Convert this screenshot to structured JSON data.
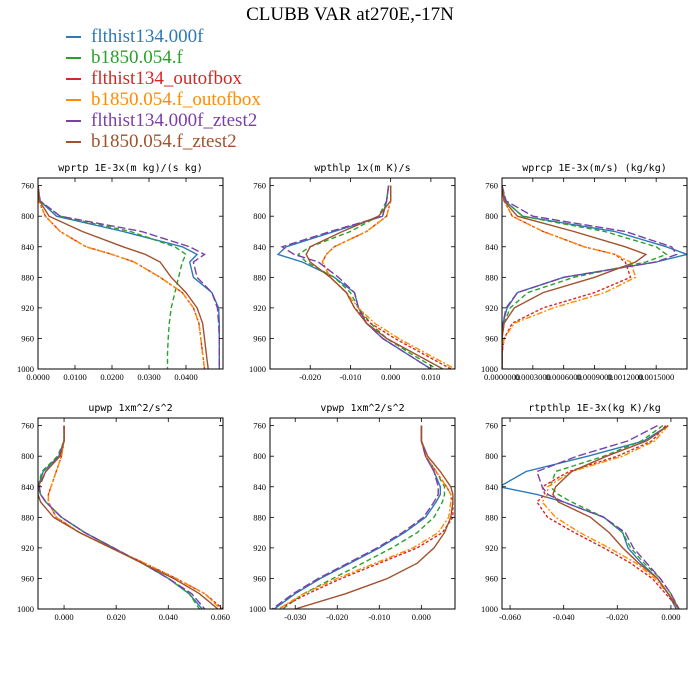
{
  "title": "CLUBB VAR at270E,-17N",
  "legend": [
    {
      "label": "flthist134.000f",
      "color": "#2d7ab6"
    },
    {
      "label": "b1850.054.f",
      "color": "#2ca02c"
    },
    {
      "label": "flthist134_outofbox",
      "color": "#d62728"
    },
    {
      "label": "b1850.054.f_outofbox",
      "color": "#ff8c00"
    },
    {
      "label": "flthist134.000f_ztest2",
      "color": "#7b3fa8"
    },
    {
      "label": "b1850.054.f_ztest2",
      "color": "#a0522d"
    }
  ],
  "chart_data": [
    {
      "type": "line",
      "title": "wprtp  1E-3x(m kg)/(s kg)",
      "xlim": [
        0,
        0.05
      ],
      "ylim": [
        1000,
        750
      ],
      "y_ticks": [
        760,
        800,
        840,
        880,
        920,
        960,
        1000
      ],
      "x_ticks": [
        "0.0000",
        "0.0100",
        "0.0200",
        "0.0300",
        "0.0400"
      ],
      "x_tick_values": [
        0,
        0.01,
        0.02,
        0.03,
        0.04
      ],
      "p": [
        760,
        780,
        800,
        820,
        840,
        850,
        860,
        880,
        900,
        920,
        940,
        960,
        980,
        1000
      ],
      "series": [
        {
          "values": [
            0.0,
            0.0005,
            0.005,
            0.023,
            0.039,
            0.043,
            0.041,
            0.042,
            0.047,
            0.0488,
            0.049,
            0.049,
            0.049,
            0.049
          ]
        },
        {
          "values": [
            0.0,
            0.0005,
            0.006,
            0.025,
            0.037,
            0.04,
            0.039,
            0.038,
            0.037,
            0.036,
            0.0355,
            0.0352,
            0.035,
            0.035
          ]
        },
        {
          "values": [
            0.0,
            0.0002,
            0.002,
            0.006,
            0.013,
            0.02,
            0.026,
            0.033,
            0.039,
            0.042,
            0.0435,
            0.044,
            0.0445,
            0.045
          ]
        },
        {
          "values": [
            0.0,
            0.0002,
            0.002,
            0.006,
            0.013,
            0.02,
            0.026,
            0.033,
            0.039,
            0.042,
            0.0435,
            0.044,
            0.0445,
            0.045
          ]
        },
        {
          "values": [
            0.0,
            0.0006,
            0.006,
            0.028,
            0.041,
            0.045,
            0.042,
            0.043,
            0.047,
            0.0485,
            0.0488,
            0.049,
            0.049,
            0.049
          ]
        },
        {
          "values": [
            0.0,
            0.0004,
            0.003,
            0.012,
            0.023,
            0.029,
            0.033,
            0.036,
            0.04,
            0.043,
            0.0445,
            0.045,
            0.0455,
            0.046
          ]
        }
      ]
    },
    {
      "type": "line",
      "title": "wpthlp  1x(m K)/s",
      "xlim": [
        -0.03,
        0.016
      ],
      "ylim": [
        1000,
        750
      ],
      "y_ticks": [
        760,
        800,
        840,
        880,
        920,
        960,
        1000
      ],
      "x_ticks": [
        "-0.020",
        "-0.010",
        "0.000",
        "0.010"
      ],
      "x_tick_values": [
        -0.02,
        -0.01,
        0,
        0.01
      ],
      "p": [
        760,
        780,
        800,
        820,
        840,
        850,
        860,
        880,
        900,
        920,
        940,
        960,
        980,
        1000
      ],
      "series": [
        {
          "values": [
            -0.0005,
            -0.001,
            -0.002,
            -0.014,
            -0.026,
            -0.028,
            -0.022,
            -0.014,
            -0.009,
            -0.008,
            -0.006,
            -0.002,
            0.004,
            0.01
          ]
        },
        {
          "values": [
            -0.0005,
            -0.001,
            -0.003,
            -0.01,
            -0.02,
            -0.023,
            -0.021,
            -0.014,
            -0.01,
            -0.008,
            -0.005,
            -0.001,
            0.005,
            0.0115
          ]
        },
        {
          "values": [
            0.0,
            0.0,
            -0.001,
            -0.006,
            -0.014,
            -0.016,
            -0.017,
            -0.015,
            -0.011,
            -0.009,
            -0.005,
            0.001,
            0.008,
            0.015
          ]
        },
        {
          "values": [
            0.0,
            0.0,
            -0.001,
            -0.006,
            -0.014,
            -0.016,
            -0.017,
            -0.015,
            -0.011,
            -0.008,
            -0.004,
            0.002,
            0.009,
            0.016
          ]
        },
        {
          "values": [
            -0.0005,
            -0.001,
            -0.002,
            -0.015,
            -0.027,
            -0.024,
            -0.018,
            -0.013,
            -0.009,
            -0.008,
            -0.006,
            -0.002,
            0.004,
            0.01
          ]
        },
        {
          "values": [
            0.0,
            0.0,
            -0.003,
            -0.012,
            -0.02,
            -0.021,
            -0.02,
            -0.015,
            -0.011,
            -0.009,
            -0.006,
            -0.001,
            0.006,
            0.013
          ]
        }
      ]
    },
    {
      "type": "line",
      "title": "wprcp  1E-3x(m/s) (kg/kg)",
      "xlim": [
        0,
        0.0018
      ],
      "ylim": [
        1000,
        750
      ],
      "y_ticks": [
        760,
        800,
        840,
        880,
        920,
        960,
        1000
      ],
      "x_ticks": [
        "0.0000000",
        "0.0003000",
        "0.0006000",
        "0.0009000",
        "0.0012000",
        "0.0015000"
      ],
      "x_tick_values": [
        0,
        0.0003,
        0.0006,
        0.0009,
        0.0012,
        0.0015
      ],
      "p": [
        760,
        780,
        800,
        820,
        840,
        850,
        860,
        880,
        900,
        920,
        940,
        960,
        980,
        1000
      ],
      "series": [
        {
          "values": [
            0.0,
            3e-05,
            0.0002,
            0.0011,
            0.0016,
            0.0018,
            0.0015,
            0.0006,
            0.00015,
            5e-05,
            1e-05,
            0.0,
            0.0,
            0.0
          ]
        },
        {
          "values": [
            0.0,
            3e-05,
            0.0002,
            0.001,
            0.0015,
            0.0016,
            0.0014,
            0.0007,
            0.00025,
            8e-05,
            2e-05,
            0.0,
            0.0,
            0.0
          ]
        },
        {
          "values": [
            0.0,
            2e-05,
            0.0001,
            0.0004,
            0.0008,
            0.0011,
            0.0012,
            0.00125,
            0.0009,
            0.0004,
            0.0001,
            2e-05,
            0.0,
            0.0
          ]
        },
        {
          "values": [
            0.0,
            2e-05,
            0.0001,
            0.0004,
            0.0008,
            0.0011,
            0.00125,
            0.0013,
            0.001,
            0.0005,
            0.00012,
            2e-05,
            0.0,
            0.0
          ]
        },
        {
          "values": [
            0.0,
            4e-05,
            0.0003,
            0.0012,
            0.00165,
            0.0017,
            0.0015,
            0.0006,
            0.00015,
            4e-05,
            1e-05,
            0.0,
            0.0,
            0.0
          ]
        },
        {
          "values": [
            0.0,
            2e-05,
            0.00015,
            0.0007,
            0.0012,
            0.0014,
            0.0013,
            0.0009,
            0.0004,
            0.00012,
            2e-05,
            0.0,
            0.0,
            0.0
          ]
        }
      ]
    },
    {
      "type": "line",
      "title": "upwp  1xm^2/s^2",
      "xlim": [
        -0.01,
        0.061
      ],
      "ylim": [
        1000,
        750
      ],
      "y_ticks": [
        760,
        800,
        840,
        880,
        920,
        960,
        1000
      ],
      "x_ticks": [
        "0.000",
        "0.020",
        "0.040",
        "0.060"
      ],
      "x_tick_values": [
        0,
        0.02,
        0.04,
        0.06
      ],
      "p": [
        760,
        780,
        800,
        820,
        840,
        850,
        860,
        880,
        900,
        920,
        940,
        960,
        980,
        1000
      ],
      "series": [
        {
          "values": [
            0.0,
            0.0,
            -0.002,
            -0.008,
            -0.01,
            -0.009,
            -0.007,
            -0.001,
            0.008,
            0.019,
            0.03,
            0.04,
            0.048,
            0.053
          ]
        },
        {
          "values": [
            0.0,
            0.0,
            -0.0025,
            -0.0085,
            -0.01,
            -0.009,
            -0.007,
            -0.001,
            0.008,
            0.019,
            0.03,
            0.04,
            0.048,
            0.052
          ]
        },
        {
          "values": [
            0.0,
            0.0,
            -0.001,
            -0.003,
            -0.005,
            -0.006,
            -0.006,
            -0.003,
            0.006,
            0.018,
            0.031,
            0.043,
            0.054,
            0.061
          ]
        },
        {
          "values": [
            0.0,
            0.0,
            -0.001,
            -0.003,
            -0.005,
            -0.006,
            -0.006,
            -0.003,
            0.006,
            0.018,
            0.031,
            0.043,
            0.054,
            0.06
          ]
        },
        {
          "values": [
            0.0,
            0.0,
            -0.002,
            -0.007,
            -0.0095,
            -0.009,
            -0.007,
            -0.001,
            0.008,
            0.019,
            0.03,
            0.04,
            0.049,
            0.054
          ]
        },
        {
          "values": [
            0.0,
            0.0,
            -0.0015,
            -0.007,
            -0.01,
            -0.01,
            -0.009,
            -0.004,
            0.006,
            0.018,
            0.03,
            0.042,
            0.052,
            0.059
          ]
        }
      ]
    },
    {
      "type": "line",
      "title": "vpwp  1xm^2/s^2",
      "xlim": [
        -0.036,
        0.008
      ],
      "ylim": [
        1000,
        750
      ],
      "y_ticks": [
        760,
        800,
        840,
        880,
        920,
        960,
        1000
      ],
      "x_ticks": [
        "-0.030",
        "-0.020",
        "-0.010",
        "0.000"
      ],
      "x_tick_values": [
        -0.03,
        -0.02,
        -0.01,
        0
      ],
      "p": [
        760,
        780,
        800,
        820,
        840,
        850,
        860,
        880,
        900,
        920,
        940,
        960,
        980,
        1000
      ],
      "series": [
        {
          "values": [
            0.0,
            0.0,
            0.001,
            0.003,
            0.0045,
            0.0045,
            0.0035,
            0.001,
            -0.004,
            -0.01,
            -0.017,
            -0.024,
            -0.03,
            -0.035
          ]
        },
        {
          "values": [
            0.0,
            0.0,
            0.001,
            0.0035,
            0.0055,
            0.0055,
            0.005,
            0.003,
            -0.001,
            -0.007,
            -0.014,
            -0.021,
            -0.028,
            -0.033
          ]
        },
        {
          "values": [
            0.0,
            0.0,
            0.001,
            0.0035,
            0.006,
            0.007,
            0.0075,
            0.0075,
            0.005,
            -0.001,
            -0.01,
            -0.019,
            -0.027,
            -0.034
          ]
        },
        {
          "values": [
            0.0,
            0.0,
            0.001,
            0.0035,
            0.006,
            0.007,
            0.007,
            0.0065,
            0.004,
            -0.002,
            -0.011,
            -0.02,
            -0.028,
            -0.034
          ]
        },
        {
          "values": [
            0.0,
            0.0,
            0.001,
            0.003,
            0.004,
            0.004,
            0.003,
            0.0005,
            -0.0045,
            -0.0105,
            -0.0175,
            -0.0245,
            -0.0305,
            -0.0355
          ]
        },
        {
          "values": [
            0.0,
            0.0,
            0.0015,
            0.0045,
            0.007,
            0.0075,
            0.0075,
            0.007,
            0.0055,
            0.003,
            -0.001,
            -0.008,
            -0.018,
            -0.03
          ]
        }
      ]
    },
    {
      "type": "line",
      "title": "rtpthlp  1E-3x(kg K)/kg",
      "xlim": [
        -0.063,
        0.006
      ],
      "ylim": [
        1000,
        750
      ],
      "y_ticks": [
        760,
        800,
        840,
        880,
        920,
        960,
        1000
      ],
      "x_ticks": [
        "-0.060",
        "-0.040",
        "-0.020",
        "0.000"
      ],
      "x_tick_values": [
        -0.06,
        -0.04,
        -0.02,
        0
      ],
      "p": [
        760,
        780,
        800,
        820,
        840,
        850,
        860,
        880,
        900,
        920,
        940,
        960,
        980,
        1000
      ],
      "series": [
        {
          "values": [
            -0.001,
            -0.01,
            -0.031,
            -0.054,
            -0.064,
            -0.05,
            -0.04,
            -0.025,
            -0.018,
            -0.016,
            -0.011,
            -0.005,
            -0.001,
            0.002
          ]
        },
        {
          "values": [
            -0.003,
            -0.011,
            -0.025,
            -0.043,
            -0.045,
            -0.042,
            -0.037,
            -0.025,
            -0.018,
            -0.015,
            -0.01,
            -0.004,
            0.0,
            0.003
          ]
        },
        {
          "values": [
            -0.002,
            -0.007,
            -0.02,
            -0.038,
            -0.048,
            -0.047,
            -0.05,
            -0.046,
            -0.036,
            -0.025,
            -0.015,
            -0.007,
            -0.002,
            0.003
          ]
        },
        {
          "values": [
            -0.001,
            -0.006,
            -0.018,
            -0.037,
            -0.046,
            -0.046,
            -0.048,
            -0.043,
            -0.034,
            -0.023,
            -0.013,
            -0.006,
            -0.001,
            0.003
          ]
        },
        {
          "values": [
            -0.005,
            -0.016,
            -0.035,
            -0.05,
            -0.048,
            -0.046,
            -0.04,
            -0.025,
            -0.017,
            -0.014,
            -0.009,
            -0.004,
            0.0,
            0.003
          ]
        },
        {
          "values": [
            -0.001,
            -0.009,
            -0.024,
            -0.037,
            -0.043,
            -0.044,
            -0.042,
            -0.03,
            -0.023,
            -0.018,
            -0.012,
            -0.005,
            -0.001,
            0.003
          ]
        }
      ]
    }
  ]
}
